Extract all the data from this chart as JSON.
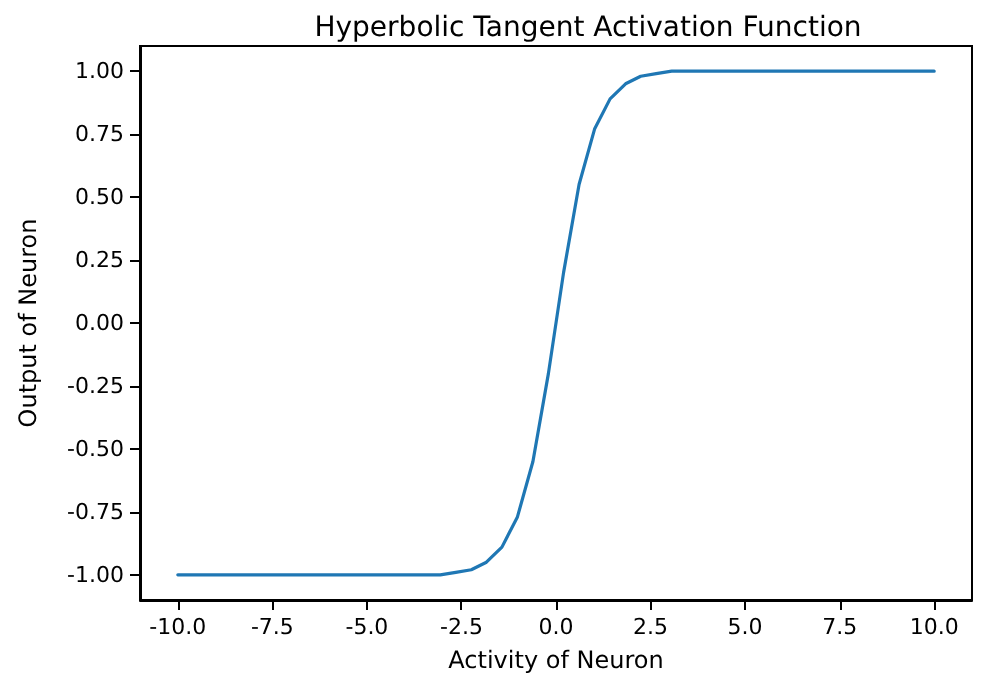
{
  "chart_data": {
    "type": "line",
    "title": "Hyperbolic Tangent Activation Function",
    "xlabel": "Activity of Neuron",
    "ylabel": "Output of Neuron",
    "x": [
      -10,
      -5,
      -3.06,
      -2.65,
      -2.24,
      -1.84,
      -1.43,
      -1.02,
      -0.61,
      -0.2,
      0.2,
      0.61,
      1.02,
      1.43,
      1.84,
      2.24,
      2.65,
      3.06,
      5,
      10
    ],
    "series": [
      {
        "color": "#1f77b4",
        "values": [
          -1,
          -1,
          -1,
          -0.99,
          -0.98,
          -0.95,
          -0.89,
          -0.77,
          -0.55,
          -0.2,
          0.2,
          0.55,
          0.77,
          0.89,
          0.95,
          0.98,
          0.99,
          1,
          1,
          1
        ]
      }
    ],
    "xlim": [
      -11,
      11
    ],
    "ylim": [
      -1.1,
      1.1
    ],
    "xticks": [
      {
        "value": -10,
        "label": "-10.0"
      },
      {
        "value": -7.5,
        "label": "-7.5"
      },
      {
        "value": -5,
        "label": "-5.0"
      },
      {
        "value": -2.5,
        "label": "-2.5"
      },
      {
        "value": 0,
        "label": "0.0"
      },
      {
        "value": 2.5,
        "label": "2.5"
      },
      {
        "value": 5,
        "label": "5.0"
      },
      {
        "value": 7.5,
        "label": "7.5"
      },
      {
        "value": 10,
        "label": "10.0"
      }
    ],
    "yticks": [
      {
        "value": -1,
        "label": "-1.00"
      },
      {
        "value": -0.75,
        "label": "-0.75"
      },
      {
        "value": -0.5,
        "label": "-0.50"
      },
      {
        "value": -0.25,
        "label": "-0.25"
      },
      {
        "value": 0,
        "label": "0.00"
      },
      {
        "value": 0.25,
        "label": "0.25"
      },
      {
        "value": 0.5,
        "label": "0.50"
      },
      {
        "value": 0.75,
        "label": "0.75"
      },
      {
        "value": 1,
        "label": "1.00"
      }
    ],
    "grid": false,
    "marker": "none",
    "line_style": "solid"
  }
}
